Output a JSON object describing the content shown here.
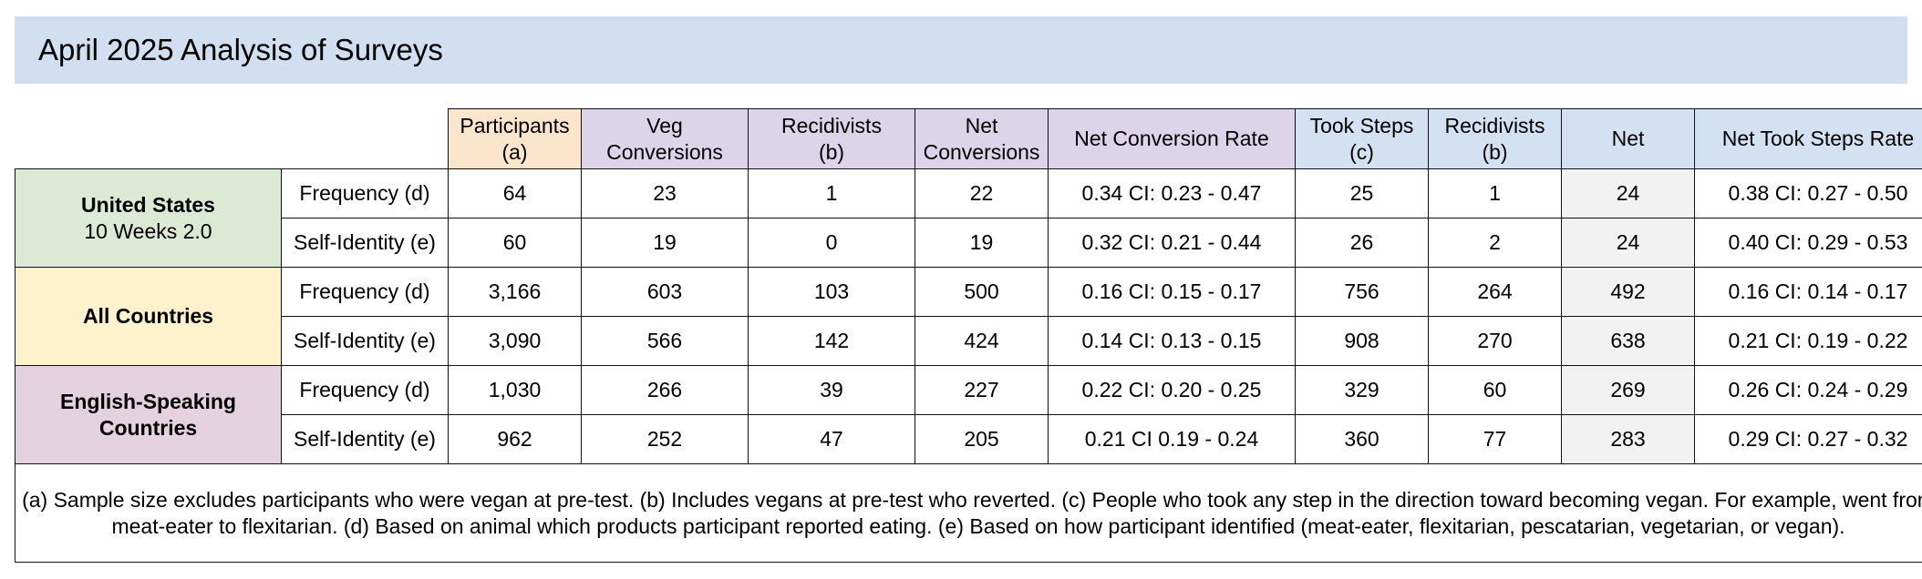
{
  "title": "April 2025 Analysis of Surveys",
  "headers": [
    {
      "line1": "Participants",
      "line2": "(a)"
    },
    {
      "line1": "Veg",
      "line2": "Conversions"
    },
    {
      "line1": "Recidivists",
      "line2": "(b)"
    },
    {
      "line1": "Net",
      "line2": "Conversions"
    },
    {
      "line1": "Net Conversion Rate",
      "line2": ""
    },
    {
      "line1": "Took Steps",
      "line2": "(c)"
    },
    {
      "line1": "Recidivists",
      "line2": "(b)"
    },
    {
      "line1": "Net",
      "line2": ""
    },
    {
      "line1": "Net Took Steps Rate",
      "line2": ""
    }
  ],
  "groups": [
    {
      "name_line1": "United States",
      "name_line2": "10 Weeks 2.0",
      "rows": [
        {
          "label": "Frequency (d)",
          "cells": [
            "64",
            "23",
            "1",
            "22",
            "0.34 CI: 0.23 - 0.47",
            "25",
            "1",
            "24",
            "0.38 CI: 0.27 - 0.50"
          ]
        },
        {
          "label": "Self-Identity (e)",
          "cells": [
            "60",
            "19",
            "0",
            "19",
            "0.32 CI: 0.21 - 0.44",
            "26",
            "2",
            "24",
            "0.40 CI: 0.29 - 0.53"
          ]
        }
      ]
    },
    {
      "name_line1": "All Countries",
      "name_line2": "",
      "rows": [
        {
          "label": "Frequency (d)",
          "cells": [
            "3,166",
            "603",
            "103",
            "500",
            "0.16 CI: 0.15 - 0.17",
            "756",
            "264",
            "492",
            "0.16  CI: 0.14 - 0.17"
          ]
        },
        {
          "label": "Self-Identity (e)",
          "cells": [
            "3,090",
            "566",
            "142",
            "424",
            "0.14 CI: 0.13 - 0.15",
            "908",
            "270",
            "638",
            "0.21 CI: 0.19 - 0.22"
          ]
        }
      ]
    },
    {
      "name_line1": "English-Speaking",
      "name_line2": "Countries",
      "rows": [
        {
          "label": "Frequency (d)",
          "cells": [
            "1,030",
            "266",
            "39",
            "227",
            "0.22 CI: 0.20 - 0.25",
            "329",
            "60",
            "269",
            "0.26 CI: 0.24 - 0.29"
          ]
        },
        {
          "label": "Self-Identity (e)",
          "cells": [
            "962",
            "252",
            "47",
            "205",
            "0.21  CI 0.19 - 0.24",
            "360",
            "77",
            "283",
            "0.29 CI: 0.27 - 0.32"
          ]
        }
      ]
    }
  ],
  "footnote": "(a) Sample size excludes participants who were vegan at pre-test. (b) Includes vegans at pre-test who reverted. (c) People who took any step in the direction toward becoming vegan. For example, went from meat-eater to flexitarian. (d) Based on animal which products participant reported eating. (e) Based on how participant identified (meat-eater, flexitarian, pescatarian, vegetarian, or vegan).",
  "colors": {
    "title_bg": "#d1dff1",
    "participants_header": "#fbe5cd",
    "conversion_headers": "#dcd4e8",
    "took_steps_headers": "#d4e1f2",
    "united_states": "#dbe9d5",
    "all_countries": "#fff2cc",
    "english_speaking": "#e4d2de",
    "shaded_cell": "#f2f2f2"
  }
}
